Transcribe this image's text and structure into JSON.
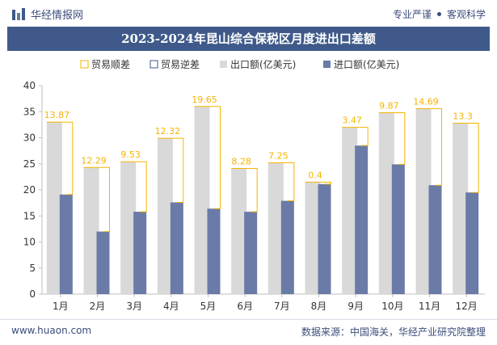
{
  "header": {
    "brand_name": "华经情报网",
    "tagline_left": "专业严谨",
    "tagline_right": "客观科学"
  },
  "chart_data": {
    "type": "bar",
    "title": "2023-2024年昆山综合保税区月度进出口差额",
    "categories": [
      "1月",
      "2月",
      "3月",
      "4月",
      "5月",
      "6月",
      "7月",
      "8月",
      "9月",
      "10月",
      "11月",
      "12月"
    ],
    "series": [
      {
        "name": "贸易顺差",
        "values": [
          13.87,
          12.29,
          9.53,
          12.32,
          19.65,
          8.28,
          7.25,
          0.4,
          3.47,
          9.87,
          14.69,
          13.3
        ]
      },
      {
        "name": "贸易逆差",
        "values": [
          0,
          0,
          0,
          0,
          0,
          0,
          0,
          0,
          0,
          0,
          0,
          0
        ]
      },
      {
        "name": "出口额(亿美元)",
        "values": [
          33.0,
          24.3,
          25.4,
          29.9,
          36.0,
          24.1,
          25.2,
          21.5,
          32.0,
          34.8,
          35.6,
          32.8
        ]
      },
      {
        "name": "进口额(亿美元)",
        "values": [
          19.1,
          12.0,
          15.8,
          17.6,
          16.4,
          15.8,
          17.9,
          21.1,
          28.5,
          24.9,
          20.9,
          19.5
        ]
      }
    ],
    "data_labels": [
      "13.87",
      "12.29",
      "9.53",
      "12.32",
      "19.65",
      "8.28",
      "7.25",
      "0.4",
      "3.47",
      "9.87",
      "14.69",
      "13.3"
    ],
    "ylim": [
      0,
      40
    ],
    "yticks": [
      0,
      5,
      10,
      15,
      20,
      25,
      30,
      35,
      40
    ],
    "legend_position": "top",
    "colors": {
      "surplus": "#f5b400",
      "deficit": "#3f5a8a",
      "export": "#d9d9d9",
      "import": "#6a7ba8",
      "axis": "#bfbfbf",
      "text": "#333333"
    }
  },
  "footer": {
    "url": "www.huaon.com",
    "source": "数据来源：中国海关，华经产业研究院整理"
  }
}
